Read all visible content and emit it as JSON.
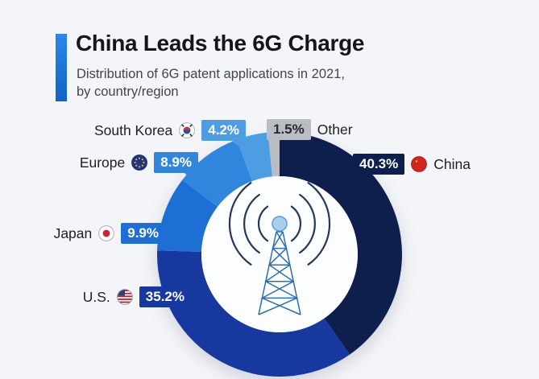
{
  "header": {
    "title": "China Leads the 6G Charge",
    "subtitle_lines": [
      "Distribution of 6G patent applications in 2021,",
      "by country/region"
    ],
    "accent_color": "#1b74d6"
  },
  "chart_data": {
    "type": "pie",
    "donut": true,
    "title": "China Leads the 6G Charge",
    "subtitle": "Distribution of 6G patent applications in 2021, by country/region",
    "unit": "%",
    "start_angle_deg": 0,
    "direction": "clockwise",
    "center_icon": "radio-tower-with-signal-waves",
    "hole_color": "#fcfdfe",
    "series": [
      {
        "label": "China",
        "value": 40.3,
        "display": "40.3%",
        "color": "#0e1e4d",
        "text_color": "#ffffff"
      },
      {
        "label": "U.S.",
        "value": 35.2,
        "display": "35.2%",
        "color": "#16389f",
        "text_color": "#ffffff"
      },
      {
        "label": "Japan",
        "value": 9.9,
        "display": "9.9%",
        "color": "#1d6fd3",
        "text_color": "#ffffff"
      },
      {
        "label": "Europe",
        "value": 8.9,
        "display": "8.9%",
        "color": "#2f86dc",
        "text_color": "#ffffff"
      },
      {
        "label": "South Korea",
        "value": 4.2,
        "display": "4.2%",
        "color": "#4d9de3",
        "text_color": "#ffffff"
      },
      {
        "label": "Other",
        "value": 1.5,
        "display": "1.5%",
        "color": "#b9bdc3",
        "text_color": "#26282c"
      }
    ]
  }
}
